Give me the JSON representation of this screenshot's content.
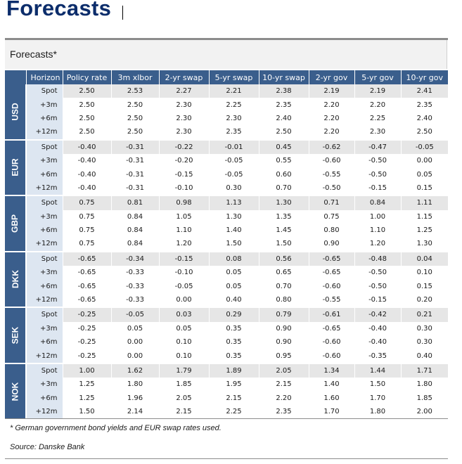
{
  "page_title": "Forecasts",
  "box_title": "Forecasts*",
  "columns": {
    "horizon": "Horizon",
    "policy_rate": "Policy rate",
    "xlbor_3m": "3m xlbor",
    "swap_2yr": "2-yr swap",
    "swap_5yr": "5-yr swap",
    "swap_10yr": "10-yr swap",
    "gov_2yr": "2-yr gov",
    "gov_5yr": "5-yr gov",
    "gov_10yr": "10-yr gov"
  },
  "groups": [
    {
      "currency": "USD",
      "rows": [
        {
          "horizon": "Spot",
          "values": [
            "2.50",
            "2.53",
            "2.27",
            "2.21",
            "2.38",
            "2.19",
            "2.19",
            "2.41"
          ]
        },
        {
          "horizon": "+3m",
          "values": [
            "2.50",
            "2.50",
            "2.30",
            "2.25",
            "2.35",
            "2.20",
            "2.20",
            "2.35"
          ]
        },
        {
          "horizon": "+6m",
          "values": [
            "2.50",
            "2.50",
            "2.30",
            "2.30",
            "2.40",
            "2.20",
            "2.25",
            "2.40"
          ]
        },
        {
          "horizon": "+12m",
          "values": [
            "2.50",
            "2.50",
            "2.30",
            "2.35",
            "2.50",
            "2.20",
            "2.30",
            "2.50"
          ]
        }
      ]
    },
    {
      "currency": "EUR",
      "rows": [
        {
          "horizon": "Spot",
          "values": [
            "-0.40",
            "-0.31",
            "-0.22",
            "-0.01",
            "0.45",
            "-0.62",
            "-0.47",
            "-0.05"
          ]
        },
        {
          "horizon": "+3m",
          "values": [
            "-0.40",
            "-0.31",
            "-0.20",
            "-0.05",
            "0.55",
            "-0.60",
            "-0.50",
            "0.00"
          ]
        },
        {
          "horizon": "+6m",
          "values": [
            "-0.40",
            "-0.31",
            "-0.15",
            "-0.05",
            "0.60",
            "-0.55",
            "-0.50",
            "0.05"
          ]
        },
        {
          "horizon": "+12m",
          "values": [
            "-0.40",
            "-0.31",
            "-0.10",
            "0.30",
            "0.70",
            "-0.50",
            "-0.15",
            "0.15"
          ]
        }
      ]
    },
    {
      "currency": "GBP",
      "rows": [
        {
          "horizon": "Spot",
          "values": [
            "0.75",
            "0.81",
            "0.98",
            "1.13",
            "1.30",
            "0.71",
            "0.84",
            "1.11"
          ]
        },
        {
          "horizon": "+3m",
          "values": [
            "0.75",
            "0.84",
            "1.05",
            "1.30",
            "1.35",
            "0.75",
            "1.00",
            "1.15"
          ]
        },
        {
          "horizon": "+6m",
          "values": [
            "0.75",
            "0.84",
            "1.10",
            "1.40",
            "1.45",
            "0.80",
            "1.10",
            "1.25"
          ]
        },
        {
          "horizon": "+12m",
          "values": [
            "0.75",
            "0.84",
            "1.20",
            "1.50",
            "1.50",
            "0.90",
            "1.20",
            "1.30"
          ]
        }
      ]
    },
    {
      "currency": "DKK",
      "rows": [
        {
          "horizon": "Spot",
          "values": [
            "-0.65",
            "-0.34",
            "-0.15",
            "0.08",
            "0.56",
            "-0.65",
            "-0.48",
            "0.04"
          ]
        },
        {
          "horizon": "+3m",
          "values": [
            "-0.65",
            "-0.33",
            "-0.10",
            "0.05",
            "0.65",
            "-0.65",
            "-0.50",
            "0.10"
          ]
        },
        {
          "horizon": "+6m",
          "values": [
            "-0.65",
            "-0.33",
            "-0.05",
            "0.05",
            "0.70",
            "-0.60",
            "-0.50",
            "0.15"
          ]
        },
        {
          "horizon": "+12m",
          "values": [
            "-0.65",
            "-0.33",
            "0.00",
            "0.40",
            "0.80",
            "-0.55",
            "-0.15",
            "0.20"
          ]
        }
      ]
    },
    {
      "currency": "SEK",
      "rows": [
        {
          "horizon": "Spot",
          "values": [
            "-0.25",
            "-0.05",
            "0.03",
            "0.29",
            "0.79",
            "-0.61",
            "-0.42",
            "0.21"
          ]
        },
        {
          "horizon": "+3m",
          "values": [
            "-0.25",
            "0.05",
            "0.05",
            "0.35",
            "0.90",
            "-0.65",
            "-0.40",
            "0.30"
          ]
        },
        {
          "horizon": "+6m",
          "values": [
            "-0.25",
            "0.00",
            "0.10",
            "0.35",
            "0.90",
            "-0.60",
            "-0.40",
            "0.30"
          ]
        },
        {
          "horizon": "+12m",
          "values": [
            "-0.25",
            "0.00",
            "0.10",
            "0.35",
            "0.95",
            "-0.60",
            "-0.35",
            "0.40"
          ]
        }
      ]
    },
    {
      "currency": "NOK",
      "rows": [
        {
          "horizon": "Spot",
          "values": [
            "1.00",
            "1.62",
            "1.79",
            "1.89",
            "2.05",
            "1.34",
            "1.44",
            "1.71"
          ]
        },
        {
          "horizon": "+3m",
          "values": [
            "1.25",
            "1.80",
            "1.85",
            "1.95",
            "2.15",
            "1.40",
            "1.50",
            "1.80"
          ]
        },
        {
          "horizon": "+6m",
          "values": [
            "1.25",
            "1.96",
            "2.05",
            "2.15",
            "2.20",
            "1.60",
            "1.70",
            "1.85"
          ]
        },
        {
          "horizon": "+12m",
          "values": [
            "1.50",
            "2.14",
            "2.15",
            "2.25",
            "2.35",
            "1.70",
            "1.80",
            "2.00"
          ]
        }
      ]
    }
  ],
  "footnote": "* German government bond yields and EUR swap rates used.",
  "source": "Source: Danske Bank",
  "colors": {
    "title": "#0c2d6b",
    "header_bg": "#3a5e8c",
    "horizon_bg": "#dde6f1",
    "spot_row_bg": "#e6e6e6"
  }
}
